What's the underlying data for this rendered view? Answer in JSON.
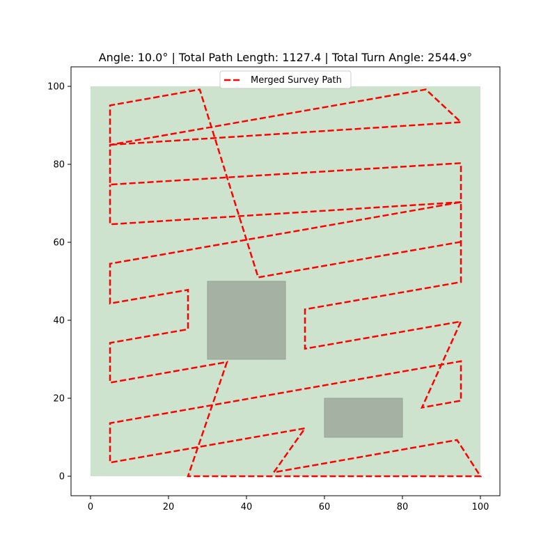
{
  "chart_data": {
    "type": "line",
    "title": "Angle: 10.0° | Total Path Length: 1127.4 | Total Turn Angle: 2544.9°",
    "xlabel": "",
    "ylabel": "",
    "xlim": [
      -5,
      105
    ],
    "ylim": [
      -5,
      105
    ],
    "x_ticks": [
      0,
      20,
      40,
      60,
      80,
      100
    ],
    "y_ticks": [
      0,
      20,
      40,
      60,
      80,
      100
    ],
    "x_tick_labels": [
      "0",
      "20",
      "40",
      "60",
      "80",
      "100"
    ],
    "y_tick_labels": [
      "0",
      "20",
      "40",
      "60",
      "80",
      "100"
    ],
    "grid": false,
    "legend_position": "top-center",
    "survey_area": {
      "x0": 0,
      "y0": 0,
      "x1": 100,
      "y1": 100,
      "color": "#cde3cd"
    },
    "obstacles": [
      {
        "x0": 30,
        "y0": 30,
        "x1": 50,
        "y1": 50,
        "color": "#a5b1a3"
      },
      {
        "x0": 60,
        "y0": 10,
        "x1": 80,
        "y1": 20,
        "color": "#a5b1a3"
      }
    ],
    "series": [
      {
        "name": "Merged Survey Path",
        "color": "#ff0000",
        "style": "dashed",
        "points": [
          [
            47,
            1
          ],
          [
            55,
            12.3
          ],
          [
            5,
            3.5
          ],
          [
            5,
            13.6
          ],
          [
            95,
            29.5
          ],
          [
            95,
            19.4
          ],
          [
            85,
            17.6
          ],
          [
            95,
            39.7
          ],
          [
            55,
            32.7
          ],
          [
            55,
            42.8
          ],
          [
            95,
            49.8
          ],
          [
            95,
            70.3
          ],
          [
            5,
            54.5
          ],
          [
            5,
            44.3
          ],
          [
            25,
            47.8
          ],
          [
            25,
            37.7
          ],
          [
            5,
            34.2
          ],
          [
            5,
            24
          ],
          [
            35,
            29.3
          ],
          [
            25,
            0
          ],
          [
            100,
            0
          ],
          [
            94,
            9.3
          ],
          [
            47,
            1
          ]
        ]
      },
      {
        "name": "",
        "color": "#ff0000",
        "style": "dashed",
        "points": [
          [
            95,
            60.1
          ],
          [
            43,
            51
          ],
          [
            28,
            99.2
          ],
          [
            5,
            95.1
          ],
          [
            5,
            85
          ],
          [
            95,
            90.8
          ],
          [
            86,
            99.2
          ],
          [
            5,
            85
          ],
          [
            5,
            74.8
          ],
          [
            95,
            80.3
          ],
          [
            95,
            70.3
          ],
          [
            5,
            64.6
          ],
          [
            5,
            74.8
          ]
        ]
      }
    ]
  }
}
